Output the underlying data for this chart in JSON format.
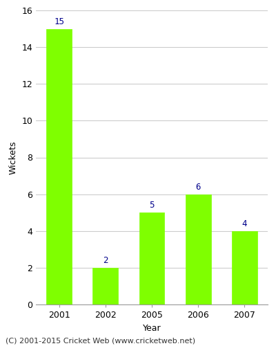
{
  "categories": [
    "2001",
    "2002",
    "2005",
    "2006",
    "2007"
  ],
  "values": [
    15,
    2,
    5,
    6,
    4
  ],
  "bar_color": "#7FFF00",
  "bar_edge_color": "#7FFF00",
  "xlabel": "Year",
  "ylabel": "Wickets",
  "ylim": [
    0,
    16
  ],
  "yticks": [
    0,
    2,
    4,
    6,
    8,
    10,
    12,
    14,
    16
  ],
  "label_color": "#00008B",
  "label_fontsize": 9,
  "axis_label_fontsize": 9,
  "tick_fontsize": 9,
  "grid_color": "#cccccc",
  "background_color": "#ffffff",
  "footer_text": "(C) 2001-2015 Cricket Web (www.cricketweb.net)",
  "footer_fontsize": 8,
  "bar_width": 0.55
}
